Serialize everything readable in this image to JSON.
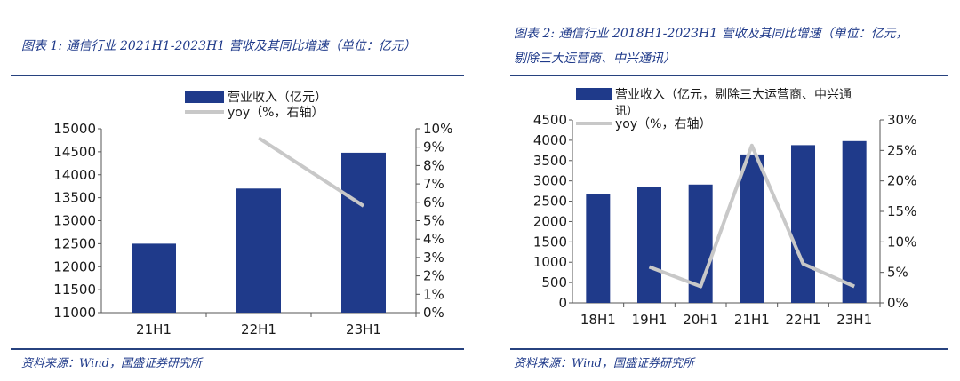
{
  "chart_data": [
    {
      "type": "bar",
      "title": "图表 1: 通信行业 2021H1-2023H1 营收及其同比增速（单位：亿元）",
      "categories": [
        "21H1",
        "22H1",
        "23H1"
      ],
      "series": [
        {
          "name": "营业收入（亿元）",
          "type": "bar",
          "axis": "left",
          "values": [
            12500,
            13700,
            14480
          ],
          "color": "#1f3a8a"
        },
        {
          "name": "yoy（%，右轴）",
          "type": "line",
          "axis": "right",
          "values": [
            null,
            9.5,
            5.8
          ],
          "color": "#c8c8c8"
        }
      ],
      "ylim": [
        11000,
        15000
      ],
      "yticks": [
        "11000",
        "11500",
        "12000",
        "12500",
        "13000",
        "13500",
        "14000",
        "14500",
        "15000"
      ],
      "y2lim": [
        0,
        10
      ],
      "y2ticks": [
        "0%",
        "1%",
        "2%",
        "3%",
        "4%",
        "5%",
        "6%",
        "7%",
        "8%",
        "9%",
        "10%"
      ],
      "legend": "top",
      "source": "资料来源：Wind，国盛证券研究所"
    },
    {
      "type": "bar",
      "title_line1": "图表 2: 通信行业 2018H1-2023H1 营收及其同比增速（单位：亿元，",
      "title_line2": "剔除三大运营商、中兴通讯）",
      "categories": [
        "18H1",
        "19H1",
        "20H1",
        "21H1",
        "22H1",
        "23H1"
      ],
      "series": [
        {
          "name": "营业收入（亿元，剔除三大运营商、中兴通讯）",
          "name_line1": "营业收入（亿元，剔除三大运营商、中兴通",
          "name_line2": "讯）",
          "type": "bar",
          "axis": "left",
          "values": [
            2680,
            2840,
            2910,
            3650,
            3880,
            3980
          ],
          "color": "#1f3a8a"
        },
        {
          "name": "yoy（%，右轴）",
          "type": "line",
          "axis": "right",
          "values": [
            null,
            5.9,
            2.7,
            25.8,
            6.4,
            2.7
          ],
          "color": "#c8c8c8"
        }
      ],
      "ylim": [
        0,
        4500
      ],
      "yticks": [
        "0",
        "500",
        "1000",
        "1500",
        "2000",
        "2500",
        "3000",
        "3500",
        "4000",
        "4500"
      ],
      "y2lim": [
        0,
        30
      ],
      "y2ticks": [
        "0%",
        "5%",
        "10%",
        "15%",
        "20%",
        "25%",
        "30%"
      ],
      "legend": "top",
      "source": "资料来源：Wind，国盛证券研究所"
    }
  ]
}
